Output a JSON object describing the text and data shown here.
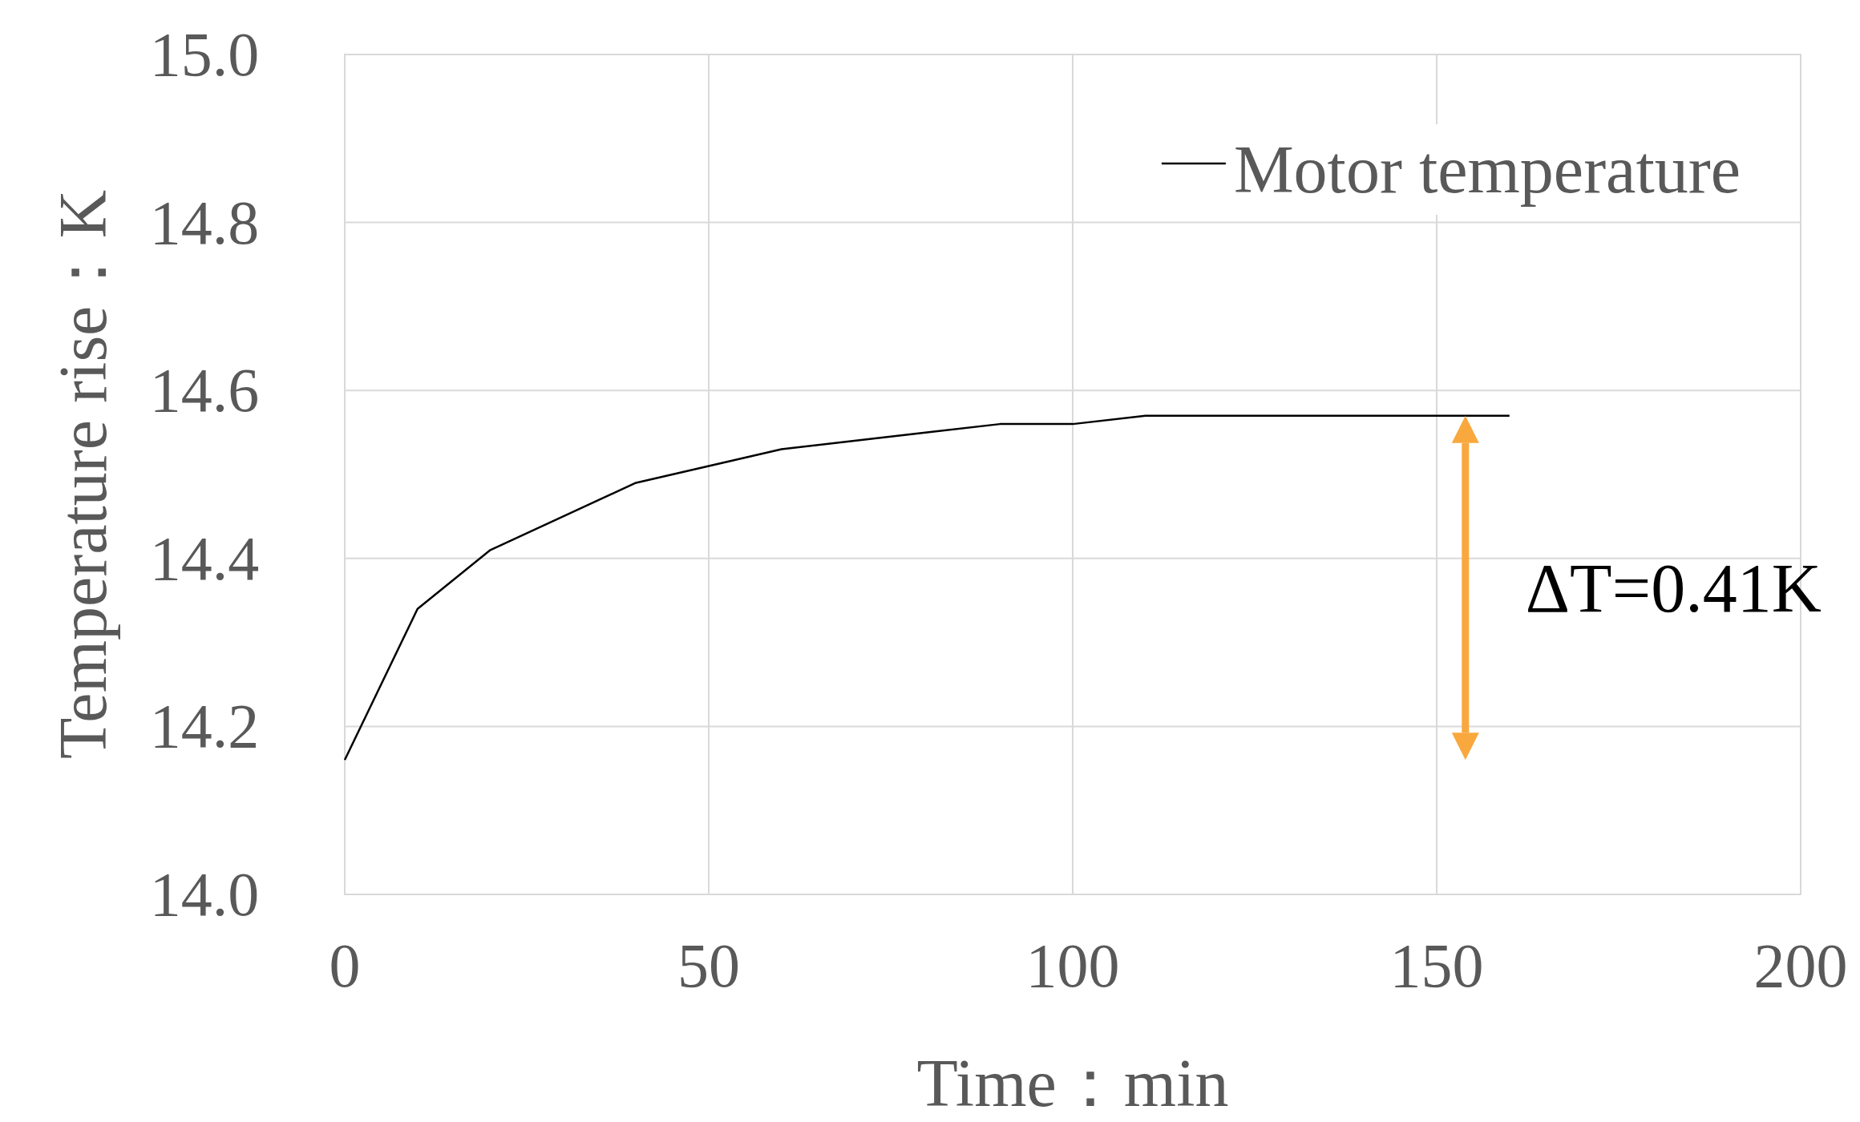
{
  "chart_data": {
    "type": "line",
    "xlabel": "Time：min",
    "ylabel": "Temperature rise：K",
    "x": [
      0,
      10,
      20,
      30,
      40,
      50,
      60,
      70,
      80,
      90,
      100,
      110,
      120,
      130,
      140,
      150,
      160
    ],
    "series": [
      {
        "name": "Motor temperature",
        "color": "#000000",
        "values": [
          14.16,
          14.34,
          14.41,
          14.45,
          14.49,
          14.51,
          14.53,
          14.54,
          14.55,
          14.56,
          14.56,
          14.57,
          14.57,
          14.57,
          14.57,
          14.57,
          14.57
        ]
      }
    ],
    "xlim": [
      0,
      200
    ],
    "xticks": [
      0,
      50,
      100,
      150,
      200
    ],
    "ylim": [
      14.0,
      15.0
    ],
    "yticks": [
      {
        "value": 14.0,
        "label": "14.0"
      },
      {
        "value": 14.2,
        "label": "14.2"
      },
      {
        "value": 14.4,
        "label": "14.4"
      },
      {
        "value": 14.6,
        "label": "14.6"
      },
      {
        "value": 14.8,
        "label": "14.8"
      },
      {
        "value": 15.0,
        "label": "15.0"
      }
    ],
    "grid": true,
    "legend": "top right",
    "marker": "none",
    "line_style": "solid",
    "annotations": [
      "ΔT=0.41K"
    ]
  }
}
